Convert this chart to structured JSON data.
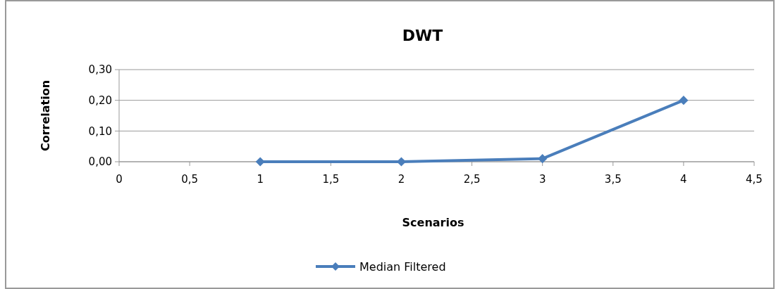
{
  "chart_data": {
    "type": "line",
    "title": "DWT",
    "xlabel": "Scenarios",
    "ylabel": "Correlation",
    "x": [
      1,
      2,
      3,
      4
    ],
    "series": [
      {
        "name": "Median Filtered",
        "color": "#4a7ebb",
        "values": [
          0,
          0,
          0.01,
          0.2
        ]
      }
    ],
    "xlim": [
      0,
      4.5
    ],
    "xticks": [
      0,
      {
        "value": 0.5,
        "label": "0,5"
      },
      1,
      {
        "value": 1.5,
        "label": "1,5"
      },
      2,
      {
        "value": 2.5,
        "label": "2,5"
      },
      3,
      {
        "value": 3.5,
        "label": "3,5"
      },
      4,
      {
        "value": 4.5,
        "label": "4,5"
      }
    ],
    "ylim": [
      0,
      0.3
    ],
    "yticks": [
      {
        "value": 0,
        "label": "0,00"
      },
      {
        "value": 0.1,
        "label": "0,10"
      },
      {
        "value": 0.2,
        "label": "0,20"
      },
      {
        "value": 0.3,
        "label": "0,30"
      }
    ],
    "grid": "y",
    "legend": "bottom",
    "marker": "diamond",
    "line_style": "solid"
  }
}
